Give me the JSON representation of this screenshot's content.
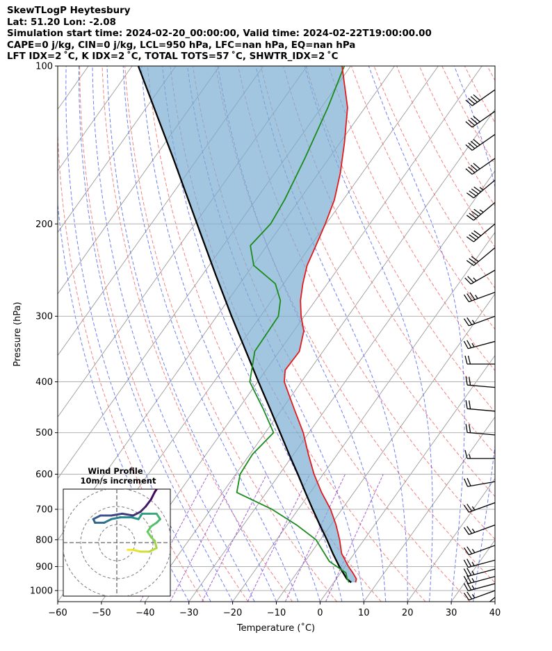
{
  "header": {
    "line1": "SkewTLogP Heytesbury",
    "line2": "Lat: 51.20   Lon: -2.08",
    "line3": "Simulation start time: 2024-02-20_00:00:00, Valid time: 2024-02-22T19:00:00.00",
    "line4": "CAPE=0 j/kg, CIN=0 j/kg, LCL=950 hPa, LFC=nan hPa, EQ=nan hPa",
    "line5": "LFT IDX=2 ˚C, K IDX=2 ˚C, TOTAL TOTS=57 ˚C, SHWTR_IDX=2 ˚C"
  },
  "colors": {
    "temperature": "#e31a1c",
    "dewpoint": "#1a8a1a",
    "parcel": "#000000",
    "shading": "#7aaed2",
    "dry_adiabat": "#f26b6b",
    "moist_adiabat": "#4a5ef0",
    "mixing_ratio": "#9b4fc9",
    "isotherm": "#9a9a9a"
  },
  "chart_data": {
    "type": "line",
    "xlabel": "Temperature (˚C)",
    "ylabel": "Pressure (hPa)",
    "xlim": [
      -60,
      40
    ],
    "ylim": [
      1050,
      100
    ],
    "y_scale": "log",
    "skew": true,
    "grid": true,
    "xticks": [
      -60,
      -50,
      -40,
      -30,
      -20,
      -10,
      0,
      10,
      20,
      30,
      40
    ],
    "yticks": [
      100,
      200,
      300,
      400,
      500,
      600,
      700,
      800,
      900,
      1000
    ],
    "series": [
      {
        "key": "temperature",
        "pressure": [
          965,
          950,
          925,
          900,
          850,
          800,
          750,
          700,
          650,
          600,
          550,
          500,
          450,
          400,
          380,
          350,
          320,
          300,
          280,
          260,
          240,
          220,
          200,
          180,
          160,
          140,
          120,
          100
        ],
        "values": [
          5.0,
          4.6,
          2.8,
          0.8,
          -2.9,
          -5.6,
          -8.8,
          -12.6,
          -17.4,
          -22.1,
          -26.6,
          -31.3,
          -37.3,
          -43.9,
          -45.6,
          -45.4,
          -47.7,
          -50.7,
          -53.4,
          -55.6,
          -57.6,
          -58.8,
          -60.2,
          -62.0,
          -65.0,
          -69.0,
          -74.0,
          -82.0
        ]
      },
      {
        "key": "dewpoint",
        "pressure": [
          965,
          950,
          925,
          880,
          800,
          750,
          700,
          650,
          600,
          550,
          500,
          450,
          400,
          350,
          300,
          280,
          260,
          240,
          220,
          200,
          180,
          150,
          120,
          100
        ],
        "values": [
          3.5,
          2.5,
          1.2,
          -4.4,
          -11.0,
          -17.8,
          -26.0,
          -36.8,
          -39.0,
          -39.4,
          -38.1,
          -44.4,
          -51.8,
          -55.6,
          -55.9,
          -58.0,
          -61.9,
          -69.8,
          -73.8,
          -72.7,
          -73.4,
          -75.5,
          -78.5,
          -81.5
        ]
      },
      {
        "key": "parcel",
        "pressure": [
          965,
          950,
          900,
          850,
          800,
          750,
          700,
          650,
          600,
          550,
          500,
          450,
          400,
          350,
          300,
          250,
          200,
          150,
          100
        ],
        "values": [
          4.0,
          2.4,
          -1.3,
          -4.9,
          -8.5,
          -12.5,
          -16.7,
          -21.1,
          -25.8,
          -31.0,
          -36.6,
          -42.8,
          -49.8,
          -57.6,
          -66.6,
          -77.0,
          -89.5,
          -105.6,
          -128.6
        ]
      }
    ],
    "wind_barbs": {
      "pressure": [
        1030,
        1000,
        970,
        940,
        910,
        875,
        820,
        750,
        680,
        620,
        560,
        505,
        455,
        410,
        370,
        335,
        300,
        270,
        245,
        222,
        200,
        182,
        165,
        150,
        135,
        122,
        111
      ],
      "speed_kt": [
        30,
        25,
        25,
        25,
        25,
        25,
        25,
        25,
        25,
        20,
        15,
        20,
        20,
        20,
        20,
        25,
        25,
        35,
        25,
        30,
        40,
        45,
        45,
        40,
        40,
        40,
        40
      ],
      "direction_deg": [
        230,
        250,
        255,
        255,
        255,
        255,
        250,
        250,
        250,
        260,
        270,
        275,
        275,
        275,
        270,
        255,
        250,
        250,
        240,
        230,
        230,
        230,
        230,
        235,
        235,
        235,
        235
      ]
    },
    "hodograph": {
      "title": "Wind Profile",
      "subtitle": "10m/s increment",
      "u": [
        6,
        9,
        13,
        18,
        22,
        21,
        19,
        17,
        19,
        22,
        24,
        22,
        18,
        14,
        12,
        8,
        2,
        -3,
        -7,
        -12,
        -13,
        -9,
        -3,
        3,
        9,
        13,
        16,
        19,
        21,
        23
      ],
      "v": [
        -4,
        -4,
        -5,
        -5,
        -3,
        1,
        3,
        6,
        9,
        11,
        13,
        16,
        16,
        16,
        13,
        14,
        14,
        13,
        11,
        11,
        13,
        15,
        15,
        16,
        15,
        17,
        20,
        24,
        28,
        31
      ]
    }
  }
}
